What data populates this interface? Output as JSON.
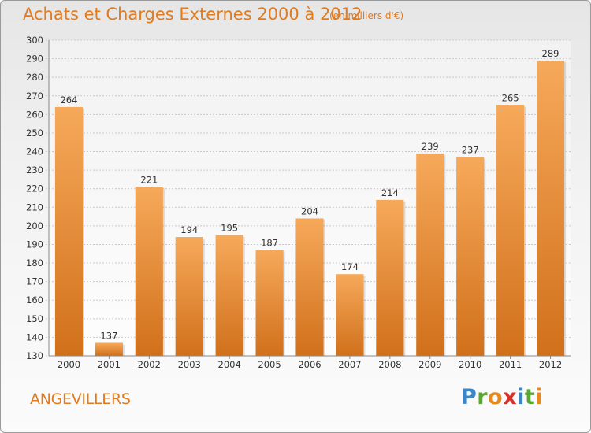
{
  "header": {
    "title": "Achats et Charges Externes 2000 à 2012",
    "subtitle": "(en milliers d'€)"
  },
  "footer": {
    "commune": "ANGEVILLERS",
    "logo": {
      "letters": [
        "P",
        "r",
        "o",
        "x",
        "i",
        "t",
        "i"
      ],
      "colors": [
        "#3a86c8",
        "#5aa832",
        "#e8891d",
        "#d8322a",
        "#3a86c8",
        "#5aa832",
        "#e8891d"
      ]
    }
  },
  "chart_data": {
    "type": "bar",
    "categories": [
      "2000",
      "2001",
      "2002",
      "2003",
      "2004",
      "2005",
      "2006",
      "2007",
      "2008",
      "2009",
      "2010",
      "2011",
      "2012"
    ],
    "values": [
      264,
      137,
      221,
      194,
      195,
      187,
      204,
      174,
      214,
      239,
      237,
      265,
      289
    ],
    "title": "Achats et Charges Externes 2000 à 2012",
    "xlabel": "",
    "ylabel": "",
    "ylim": [
      130,
      300
    ],
    "yticks": [
      130,
      140,
      150,
      160,
      170,
      180,
      190,
      200,
      210,
      220,
      230,
      240,
      250,
      260,
      270,
      280,
      290,
      300
    ],
    "grid": true,
    "data_labels": true,
    "colors": {
      "bar_top": "#f6a95a",
      "bar_bottom": "#d1701b",
      "text": "#333333",
      "grid": "#c9c9c9"
    }
  }
}
